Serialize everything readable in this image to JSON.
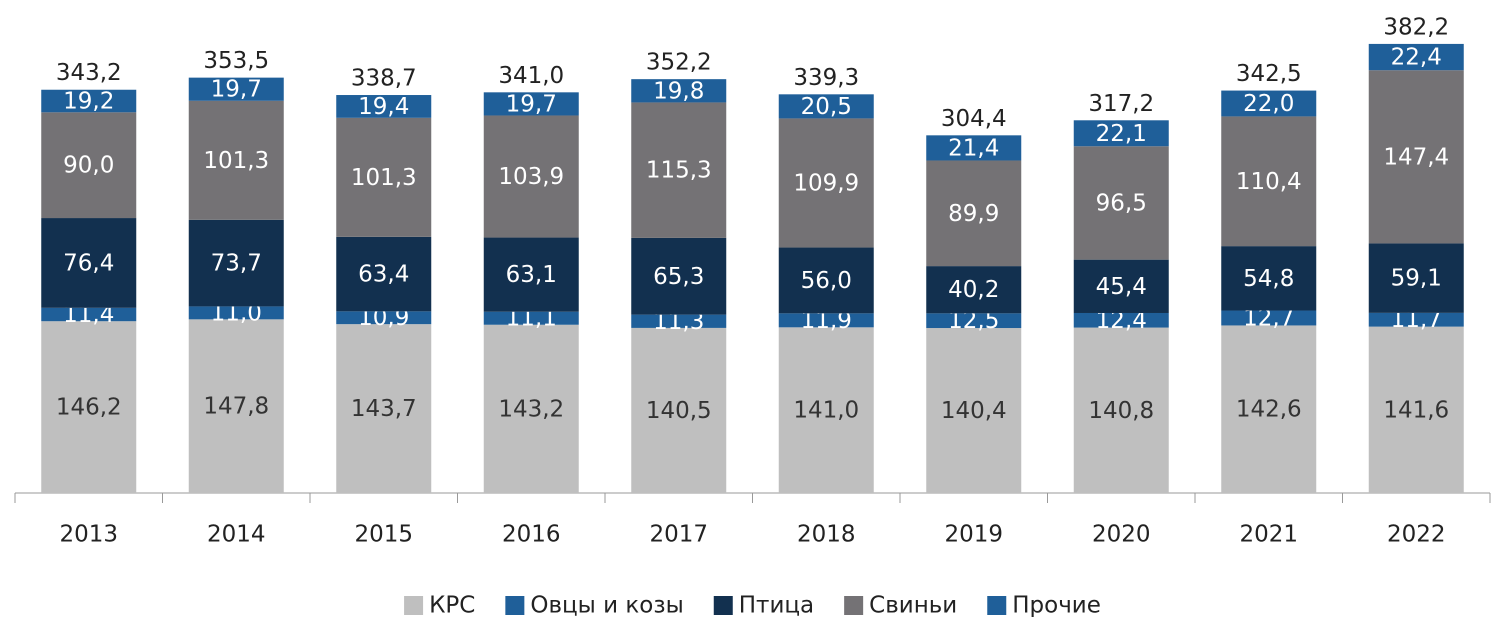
{
  "chart_data": {
    "type": "stacked_bar",
    "categories": [
      "2013",
      "2014",
      "2015",
      "2016",
      "2017",
      "2018",
      "2019",
      "2020",
      "2021",
      "2022"
    ],
    "series": [
      {
        "name": "КРС",
        "color": "#bfbfbf",
        "values": [
          146.2,
          147.8,
          143.7,
          143.2,
          140.5,
          141.0,
          140.4,
          140.8,
          142.6,
          141.6
        ],
        "value_labels": [
          "146,2",
          "147,8",
          "143,7",
          "143,2",
          "140,5",
          "141,0",
          "140,4",
          "140,8",
          "142,6",
          "141,6"
        ]
      },
      {
        "name": "Овцы и козы",
        "color": "#1f5f99",
        "values": [
          11.4,
          11.0,
          10.9,
          11.1,
          11.3,
          11.9,
          12.5,
          12.4,
          12.7,
          11.7
        ],
        "value_labels": [
          "11,4",
          "11,0",
          "10,9",
          "11,1",
          "11,3",
          "11,9",
          "12,5",
          "12,4",
          "12,7",
          "11,7"
        ]
      },
      {
        "name": "Птица",
        "color": "#12304f",
        "values": [
          76.4,
          73.7,
          63.4,
          63.1,
          65.3,
          56.0,
          40.2,
          45.4,
          54.8,
          59.1
        ],
        "value_labels": [
          "76,4",
          "73,7",
          "63,4",
          "63,1",
          "65,3",
          "56,0",
          "40,2",
          "45,4",
          "54,8",
          "59,1"
        ]
      },
      {
        "name": "Свиньи",
        "color": "#747275",
        "values": [
          90.0,
          101.3,
          101.3,
          103.9,
          115.3,
          109.9,
          89.9,
          96.5,
          110.4,
          147.4
        ],
        "value_labels": [
          "90,0",
          "101,3",
          "101,3",
          "103,9",
          "115,3",
          "109,9",
          "89,9",
          "96,5",
          "110,4",
          "147,4"
        ]
      },
      {
        "name": "Прочие",
        "color": "#1f5f99",
        "values": [
          19.2,
          19.7,
          19.4,
          19.7,
          19.8,
          20.5,
          21.4,
          22.1,
          22.0,
          22.4
        ],
        "value_labels": [
          "19,2",
          "19,7",
          "19,4",
          "19,7",
          "19,8",
          "20,5",
          "21,4",
          "22,1",
          "22,0",
          "22,4"
        ]
      }
    ],
    "totals": [
      343.2,
      353.5,
      338.7,
      341.0,
      352.2,
      339.3,
      304.4,
      317.2,
      342.5,
      382.2
    ],
    "total_labels": [
      "343,2",
      "353,5",
      "338,7",
      "341,0",
      "352,2",
      "339,3",
      "304,4",
      "317,2",
      "342,5",
      "382,2"
    ]
  }
}
